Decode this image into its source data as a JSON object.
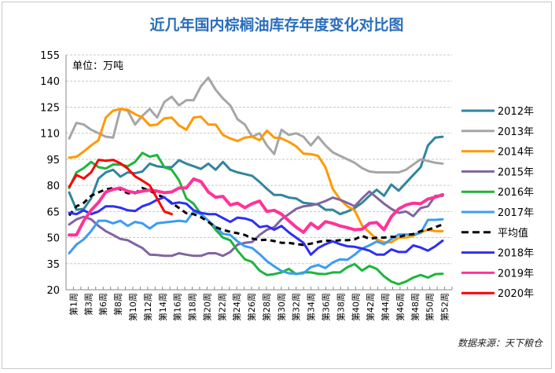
{
  "chart_data": {
    "type": "line",
    "title": "近几年国内棕榈油库存年度变化对比图",
    "unit_label": "单位：万吨",
    "source": "数据来源：天下粮仓",
    "watermark": "天下粮仓",
    "ylim": [
      20,
      155
    ],
    "yticks": [
      20,
      35,
      50,
      65,
      80,
      95,
      110,
      125,
      140,
      155
    ],
    "grid": true,
    "legend": "right",
    "x_tick_labels": [
      "第1周",
      "第3周",
      "第6周",
      "第8周",
      "第10周",
      "第12周",
      "第14周",
      "第16周",
      "第18周",
      "第20周",
      "第22周",
      "第24周",
      "第26周",
      "第28周",
      "第30周",
      "第32周",
      "第34周",
      "第36周",
      "第38周",
      "第40周",
      "第42周",
      "第44周",
      "第46周",
      "第48周",
      "第50周",
      "第52周"
    ],
    "series": [
      {
        "name": "2012年",
        "color": "#31859c",
        "dash": false,
        "values": [
          76,
          66,
          66.5,
          72.5,
          84,
          87.5,
          89,
          85,
          87.5,
          87,
          88,
          92.5,
          91,
          90.5,
          90.5,
          94.5,
          92.5,
          91,
          89.5,
          92.5,
          89,
          93.5,
          89,
          87.5,
          86.5,
          85.5,
          82,
          78,
          74.5,
          74.5,
          73,
          72.5,
          70,
          69.5,
          69,
          66,
          66,
          63.5,
          65,
          67,
          70,
          74,
          77.5,
          74,
          80.5,
          77,
          81.5,
          86,
          90.5,
          103,
          107.5,
          108
        ]
      },
      {
        "name": "2013年",
        "color": "#a6a6a6",
        "dash": false,
        "values": [
          107,
          116,
          115,
          112,
          110,
          108,
          107.5,
          124,
          123,
          115,
          120,
          124,
          119,
          128,
          131,
          126,
          129,
          129,
          137,
          142,
          135,
          130,
          126,
          118,
          115,
          108,
          110,
          103,
          98,
          112,
          109,
          110,
          108,
          103,
          108,
          103,
          99,
          97,
          95,
          93,
          90,
          88,
          87.5,
          87.5,
          87.5,
          87.5,
          89,
          92,
          95,
          94,
          93,
          92.5
        ]
      },
      {
        "name": "2014年",
        "color": "#ff9900",
        "dash": false,
        "values": [
          96,
          96.5,
          99.5,
          103,
          106,
          119,
          123,
          124,
          123.5,
          121,
          119,
          114.5,
          115,
          118.5,
          119,
          114.5,
          112,
          119,
          119.5,
          115,
          115,
          109,
          107,
          105.5,
          107.5,
          108,
          106,
          111.5,
          107.5,
          107,
          105,
          102.5,
          98.3,
          98,
          97,
          90.5,
          78,
          72,
          68,
          65.7,
          57,
          53,
          49,
          47.3,
          47.3,
          50,
          50,
          51,
          53,
          54.5,
          53.7,
          53.7
        ]
      },
      {
        "name": "2015年",
        "color": "#8064a2",
        "dash": false,
        "values": [
          57.5,
          60.5,
          62,
          60.5,
          56.7,
          53.7,
          51.5,
          49.2,
          48.5,
          46.2,
          44,
          40.2,
          40,
          39.5,
          39.5,
          41,
          40.2,
          39.5,
          39.5,
          41,
          41,
          39.5,
          41.7,
          46,
          47,
          47.5,
          51.5,
          54.5,
          56,
          60.5,
          63.5,
          66.5,
          68,
          68.5,
          69.5,
          71,
          73,
          71.7,
          70,
          68,
          72.5,
          76.5,
          73,
          69.5,
          66.5,
          64.2,
          65,
          62.3,
          67,
          68,
          74,
          74
        ]
      },
      {
        "name": "2016年",
        "color": "#1db53c",
        "dash": false,
        "values": [
          78.5,
          87.5,
          90,
          93.5,
          90.5,
          89.7,
          92,
          92,
          91,
          93.5,
          98.7,
          96.5,
          97.5,
          90.5,
          89,
          83,
          72.5,
          69.5,
          63.5,
          59.7,
          54.5,
          50,
          48.5,
          42.5,
          37.5,
          36,
          31,
          28.5,
          29,
          30,
          32,
          29,
          30,
          30,
          29.2,
          29,
          30,
          30,
          33,
          34.8,
          31,
          33.7,
          32,
          27.7,
          24.7,
          23.2,
          24.7,
          27,
          28.5,
          27,
          29,
          29.2
        ]
      },
      {
        "name": "2017年",
        "color": "#3d9cf0",
        "dash": false,
        "values": [
          41,
          46,
          49,
          53.7,
          59.7,
          59.7,
          58.2,
          59.7,
          56.7,
          59,
          58.2,
          55.2,
          58.2,
          58.7,
          59.2,
          59.7,
          59.2,
          65,
          63.5,
          59.7,
          56,
          52.2,
          51.5,
          47.8,
          45,
          44,
          40.5,
          36.5,
          33.5,
          30.8,
          29.5,
          29.2,
          29.5,
          33,
          34.2,
          32.5,
          35.7,
          37.5,
          37.2,
          40.2,
          43.7,
          45.5,
          47.7,
          46.2,
          49.2,
          51.8,
          51.8,
          51.8,
          52.7,
          60.2,
          60.2,
          60.5
        ]
      },
      {
        "name": "平均值",
        "color": "#000000",
        "dash": true,
        "values": [
          62.7,
          68,
          70,
          74,
          76,
          77.7,
          78.5,
          77.7,
          75.5,
          75.5,
          78.5,
          77,
          74.7,
          73,
          70,
          67,
          64,
          63.5,
          61.7,
          59,
          56,
          54.5,
          53.3,
          52.5,
          51.5,
          49.5,
          48.5,
          48.8,
          48,
          47,
          47,
          46.3,
          45.8,
          46.5,
          47.5,
          48.3,
          48,
          48.5,
          48.5,
          49,
          51,
          49.3,
          50,
          50,
          50.5,
          50.3,
          51.5,
          52,
          53.7,
          54.5,
          56,
          57.5
        ]
      },
      {
        "name": "2018年",
        "color": "#2e2ef5",
        "dash": false,
        "values": [
          64.2,
          63.5,
          65.7,
          63.5,
          65,
          68,
          68,
          67.2,
          65.7,
          65.3,
          68,
          69.5,
          71.7,
          73.2,
          69.5,
          70.2,
          69.5,
          65.7,
          64.2,
          63.5,
          63.5,
          61.2,
          59,
          61.5,
          61,
          59.7,
          56,
          56.7,
          54.5,
          56.7,
          53,
          50,
          47,
          40.2,
          44,
          46.2,
          47.8,
          46.2,
          45,
          44.7,
          43.7,
          42.5,
          40.2,
          40.2,
          43.2,
          41.7,
          41.7,
          45.5,
          44.3,
          42.5,
          45,
          48.2
        ]
      },
      {
        "name": "2019年",
        "color": "#ff3399",
        "dash": false,
        "values": [
          51.5,
          51.5,
          59.7,
          65.7,
          70.2,
          76.2,
          77.7,
          78.5,
          76.7,
          75.8,
          76.7,
          77.3,
          76.7,
          75.8,
          76.2,
          78.5,
          78.5,
          83.7,
          82.2,
          76.2,
          73.2,
          73.7,
          68.7,
          69.8,
          67.2,
          69.5,
          71,
          65,
          65.7,
          63.5,
          59.7,
          56,
          53,
          58.2,
          55.2,
          59.2,
          58.2,
          56.7,
          55.7,
          54.5,
          54.8,
          58.2,
          58.7,
          54.5,
          62,
          66.5,
          68.7,
          69.8,
          69.5,
          72.2,
          73.2,
          74.7
        ]
      },
      {
        "name": "2020年",
        "color": "#ff0000",
        "dash": false,
        "values": [
          79.2,
          86,
          84,
          87.5,
          94.7,
          94.2,
          94.7,
          92.7,
          89.7,
          85.2,
          82.7,
          80,
          72.5,
          65,
          63.5
        ]
      }
    ]
  }
}
